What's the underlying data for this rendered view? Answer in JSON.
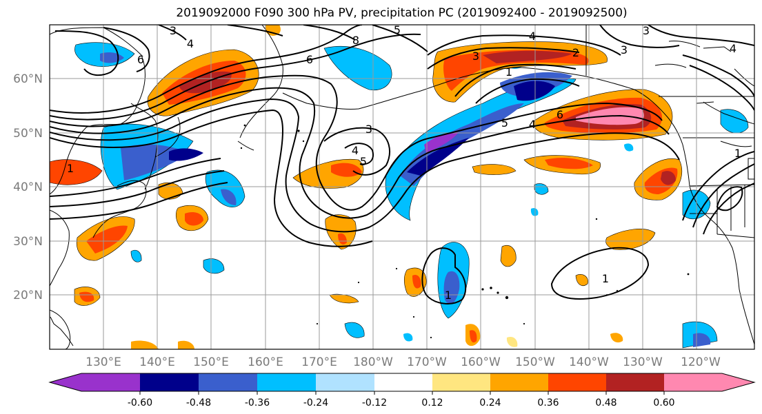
{
  "title": "2019092000 F090 300 hPa PV, precipitation PC (2019092400 - 2019092500)",
  "lat_labels": [
    "60°N",
    "50°N",
    "40°N",
    "30°N",
    "20°N"
  ],
  "lon_labels": [
    "130°E",
    "140°E",
    "150°E",
    "160°E",
    "170°E",
    "180°W",
    "170°W",
    "160°W",
    "150°W",
    "140°W",
    "130°W",
    "120°W"
  ],
  "colorbar": {
    "tick_labels": [
      "-0.60",
      "-0.48",
      "-0.36",
      "-0.24",
      "-0.12",
      "0.12",
      "0.24",
      "0.36",
      "0.48",
      "0.60"
    ],
    "colors": [
      "#9932cc",
      "#00008b",
      "#3a5fcd",
      "#00bfff",
      "#b0e2ff",
      "#ffffff",
      "#ffe680",
      "#ffa500",
      "#ff4500",
      "#b22222",
      "#ff88b0"
    ]
  },
  "contour_labels": [
    "3",
    "4",
    "6",
    "8",
    "5",
    "6",
    "3",
    "3",
    "4",
    "2",
    "3",
    "1",
    "6",
    "5",
    "4",
    "1",
    "3",
    "5",
    "4",
    "4",
    "1",
    "1",
    "1"
  ]
}
